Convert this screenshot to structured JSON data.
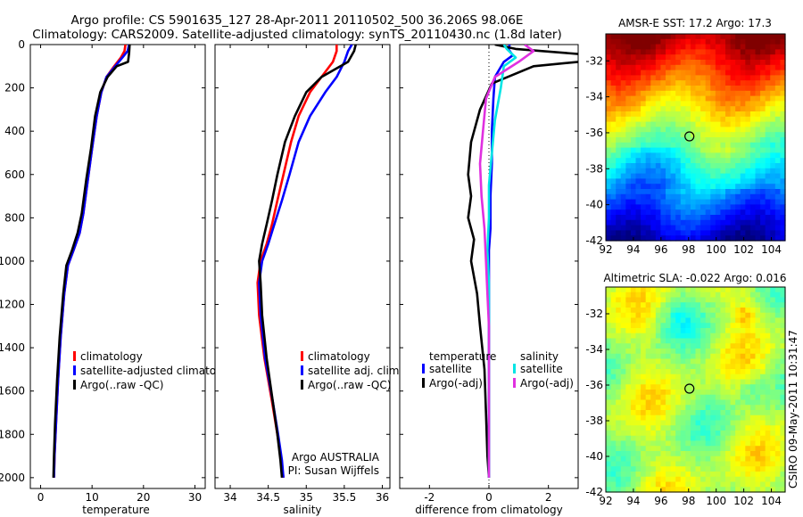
{
  "header": {
    "line1": "Argo profile: CS 5901635_127 28-Apr-2011 20110502_500 36.206S 98.06E",
    "line2": "Climatology: CARS2009. Satellite-adjusted climatology: synTS_20110430.nc (1.8d later)"
  },
  "side_label": "CSIRO 09-May-2011 10:31:47",
  "colors": {
    "climatology": "#ff0000",
    "satellite": "#0000ff",
    "argo": "#000000",
    "salinity_sat": "#00e5e5",
    "salinity_argo": "#e030e0"
  },
  "chart_data": [
    {
      "id": "temperature",
      "type": "line",
      "xlabel": "temperature",
      "ylabel": "",
      "xlim": [
        -2,
        32
      ],
      "ylim": [
        2050,
        0
      ],
      "xticks": [
        0,
        10,
        20,
        30
      ],
      "yticks": [
        0,
        200,
        400,
        600,
        800,
        1000,
        1200,
        1400,
        1600,
        1800,
        2000
      ],
      "legend": [
        "climatology",
        "satellite-adjusted climatolog",
        "Argo(..raw -QC)"
      ],
      "legend_colors": [
        "#ff0000",
        "#0000ff",
        "#000000"
      ],
      "series": [
        {
          "name": "climatology",
          "color": "#ff0000",
          "x": [
            16.5,
            16.3,
            15.6,
            14.3,
            12.8,
            11.8,
            10.9,
            10.0,
            9.2,
            8.3,
            7.6,
            6.4,
            5.3,
            4.6,
            3.9,
            3.4,
            3.0,
            2.7,
            2.6
          ],
          "y": [
            0,
            30,
            60,
            100,
            150,
            220,
            330,
            480,
            620,
            780,
            870,
            950,
            1020,
            1150,
            1350,
            1550,
            1750,
            1900,
            2000
          ]
        },
        {
          "name": "satellite",
          "color": "#0000ff",
          "x": [
            17.2,
            16.9,
            15.9,
            14.5,
            12.8,
            11.8,
            10.9,
            10.0,
            9.2,
            8.3,
            7.6,
            6.4,
            5.3,
            4.6,
            3.9,
            3.4,
            3.0,
            2.7,
            2.6
          ],
          "y": [
            0,
            30,
            60,
            100,
            150,
            220,
            330,
            480,
            620,
            780,
            870,
            950,
            1020,
            1150,
            1350,
            1550,
            1750,
            1900,
            2000
          ]
        },
        {
          "name": "Argo",
          "color": "#000000",
          "x": [
            17.3,
            17.2,
            17.0,
            14.8,
            13.0,
            11.6,
            10.6,
            9.8,
            8.9,
            8.0,
            7.2,
            6.1,
            5.0,
            4.4,
            3.7,
            3.2,
            2.8,
            2.6,
            2.5
          ],
          "y": [
            0,
            40,
            80,
            100,
            150,
            220,
            330,
            480,
            620,
            780,
            870,
            950,
            1020,
            1150,
            1350,
            1550,
            1750,
            1900,
            2000
          ]
        }
      ]
    },
    {
      "id": "salinity",
      "type": "line",
      "xlabel": "salinity",
      "ylabel": "",
      "xlim": [
        33.8,
        36.1
      ],
      "ylim": [
        2050,
        0
      ],
      "xticks": [
        34,
        34.5,
        35,
        35.5,
        36
      ],
      "legend": [
        "climatology",
        "satellite adj. clim.",
        "Argo(..raw -QC)"
      ],
      "legend_colors": [
        "#ff0000",
        "#0000ff",
        "#000000"
      ],
      "annotation": [
        "Argo AUSTRALIA",
        "PI: Susan Wijffels"
      ],
      "series": [
        {
          "name": "climatology",
          "color": "#ff0000",
          "x": [
            35.4,
            35.4,
            35.35,
            35.2,
            35.05,
            34.9,
            34.8,
            34.7,
            34.62,
            34.55,
            34.48,
            34.4,
            34.36,
            34.38,
            34.45,
            34.55,
            34.62,
            34.67,
            34.7
          ],
          "y": [
            0,
            30,
            80,
            150,
            220,
            330,
            450,
            600,
            720,
            830,
            920,
            1000,
            1100,
            1250,
            1450,
            1650,
            1800,
            1920,
            2000
          ]
        },
        {
          "name": "satellite",
          "color": "#0000ff",
          "x": [
            35.6,
            35.55,
            35.5,
            35.4,
            35.25,
            35.05,
            34.9,
            34.78,
            34.68,
            34.58,
            34.5,
            34.42,
            34.38,
            34.4,
            34.46,
            34.56,
            34.63,
            34.68,
            34.7
          ],
          "y": [
            0,
            30,
            80,
            150,
            220,
            330,
            450,
            600,
            720,
            830,
            920,
            1000,
            1100,
            1250,
            1450,
            1650,
            1800,
            1920,
            2000
          ]
        },
        {
          "name": "Argo",
          "color": "#000000",
          "x": [
            35.65,
            35.63,
            35.55,
            35.2,
            35.0,
            34.85,
            34.72,
            34.62,
            34.55,
            34.48,
            34.42,
            34.38,
            34.4,
            34.42,
            34.48,
            34.56,
            34.62,
            34.66,
            34.68
          ],
          "y": [
            0,
            30,
            80,
            150,
            220,
            330,
            450,
            600,
            720,
            830,
            920,
            1000,
            1100,
            1250,
            1450,
            1650,
            1800,
            1920,
            2000
          ]
        }
      ]
    },
    {
      "id": "difference",
      "type": "line",
      "xlabel": "difference from climatology",
      "ylabel": "",
      "xlim": [
        -3,
        3
      ],
      "ylim": [
        2050,
        0
      ],
      "xticks": [
        -2,
        0,
        2
      ],
      "legend_title_left": "temperature",
      "legend_title_right": "salinity",
      "legend_left": [
        "satellite",
        "Argo(-adj)"
      ],
      "legend_left_colors": [
        "#0000ff",
        "#000000"
      ],
      "legend_right": [
        "satellite",
        "Argo(-adj)"
      ],
      "legend_right_colors": [
        "#00e5e5",
        "#e030e0"
      ],
      "series": [
        {
          "name": "temperature satellite",
          "color": "#0000ff",
          "x": [
            0.7,
            0.65,
            0.8,
            0.5,
            0.2,
            0.15,
            0.1,
            0.1,
            0.05,
            0.05,
            0.0,
            0.0,
            0.0,
            0.0,
            0.0,
            0.0,
            0.0,
            0.0
          ],
          "y": [
            0,
            20,
            50,
            80,
            150,
            250,
            400,
            550,
            700,
            850,
            950,
            1050,
            1200,
            1400,
            1600,
            1800,
            1950,
            2000
          ]
        },
        {
          "name": "temperature Argo",
          "color": "#000000",
          "x": [
            0.2,
            0.9,
            4.5,
            1.5,
            0.1,
            -0.3,
            -0.6,
            -0.7,
            -0.6,
            -0.7,
            -0.5,
            -0.6,
            -0.4,
            -0.3,
            -0.15,
            -0.1,
            -0.05,
            0.0
          ],
          "y": [
            0,
            20,
            60,
            100,
            180,
            300,
            450,
            600,
            700,
            800,
            900,
            1000,
            1150,
            1300,
            1500,
            1700,
            1900,
            2000
          ]
        },
        {
          "name": "salinity satellite",
          "color": "#00e5e5",
          "x": [
            0.5,
            0.6,
            0.9,
            0.5,
            0.4,
            0.2,
            0.1,
            0.0,
            0.0,
            -0.05,
            0.0,
            0.0,
            0.0,
            0.0,
            0.0,
            0.0,
            0.0,
            0.0
          ],
          "y": [
            0,
            20,
            60,
            100,
            200,
            350,
            500,
            650,
            800,
            950,
            1100,
            1250,
            1400,
            1550,
            1700,
            1850,
            1950,
            2000
          ]
        },
        {
          "name": "salinity Argo",
          "color": "#e030e0",
          "x": [
            1.2,
            1.5,
            1.0,
            0.2,
            -0.1,
            -0.2,
            -0.3,
            -0.25,
            -0.15,
            -0.1,
            -0.05,
            0.0,
            0.0,
            0.0,
            0.0,
            0.0,
            0.0,
            0.0
          ],
          "y": [
            0,
            30,
            80,
            150,
            250,
            400,
            550,
            700,
            850,
            1000,
            1150,
            1300,
            1450,
            1600,
            1750,
            1850,
            1950,
            2000
          ]
        }
      ]
    },
    {
      "id": "sst-map",
      "type": "heatmap",
      "title": "AMSR-E SST: 17.2 Argo: 17.3",
      "xlim": [
        92,
        105
      ],
      "ylim": [
        -42,
        -30.5
      ],
      "xticks": [
        92,
        94,
        96,
        98,
        100,
        102,
        104
      ],
      "yticks": [
        -42,
        -40,
        -38,
        -36,
        -34,
        -32
      ],
      "float_position": [
        98.06,
        -36.2
      ]
    },
    {
      "id": "sla-map",
      "type": "heatmap",
      "title": "Altimetric SLA: -0.022 Argo: 0.016",
      "xlim": [
        92,
        105
      ],
      "ylim": [
        -42,
        -30.5
      ],
      "xticks": [
        92,
        94,
        96,
        98,
        100,
        102,
        104
      ],
      "yticks": [
        -42,
        -40,
        -38,
        -36,
        -34,
        -32
      ],
      "float_position": [
        98.06,
        -36.2
      ]
    }
  ]
}
